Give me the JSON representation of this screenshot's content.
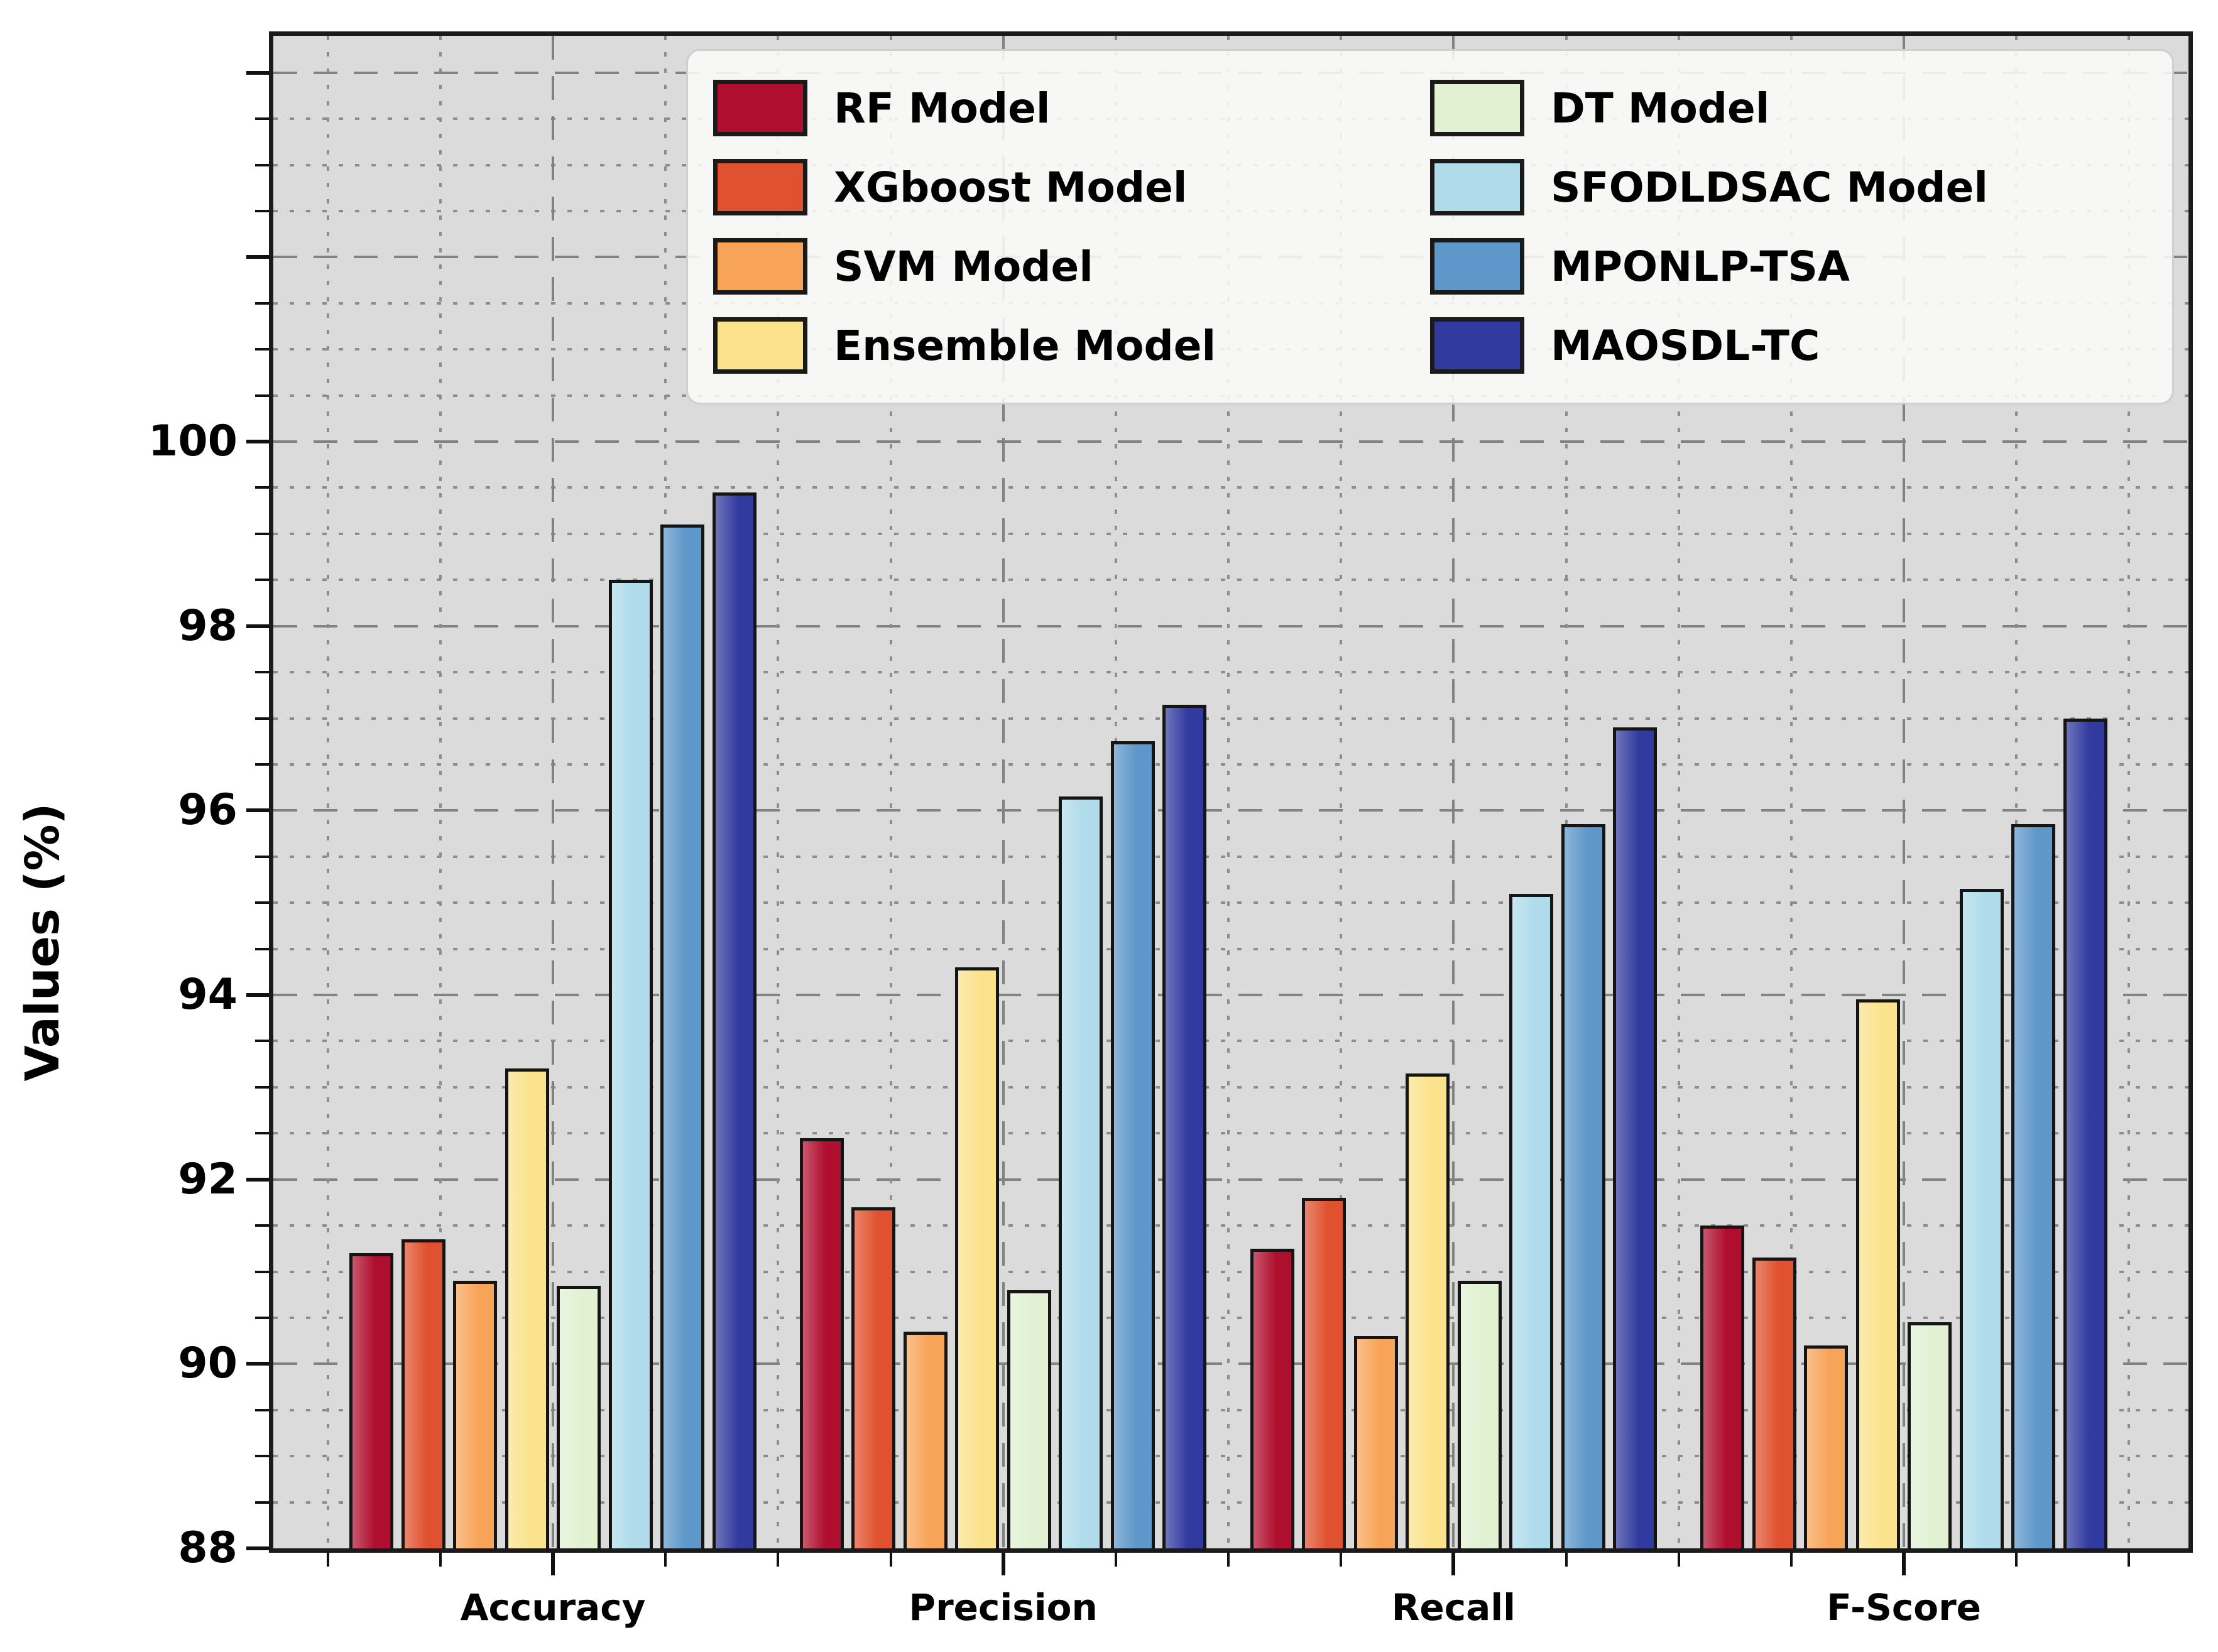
{
  "figure": {
    "background_color": "#ffffff",
    "plot_background_color": "#dbdbdb",
    "spine_color": "#1a1a1a",
    "major_grid_color": "#828282",
    "minor_grid_color": "#8d8d8d",
    "bar_edge_color": "#151515"
  },
  "chart_data": {
    "type": "bar",
    "title": "",
    "xlabel": "",
    "ylabel": "Values (%)",
    "ylim": [
      88,
      104.4
    ],
    "yticks": [
      88,
      90,
      92,
      94,
      96,
      98,
      100
    ],
    "minor_tick_step": 0.5,
    "grid": "major dashed + minor dotted, horizontal and vertical",
    "legend_position": "upper center, 2 columns, column-major order",
    "categories": [
      "Accuracy",
      "Precision",
      "Recall",
      "F-Score"
    ],
    "series": [
      {
        "name": "RF Model",
        "color": "#B00E2E",
        "values": [
          91.2,
          92.45,
          91.25,
          91.5
        ]
      },
      {
        "name": "XGboost Model",
        "color": "#E0512F",
        "values": [
          91.35,
          91.7,
          91.8,
          91.15
        ]
      },
      {
        "name": "SVM Model",
        "color": "#F8A458",
        "values": [
          90.9,
          90.35,
          90.3,
          90.2
        ]
      },
      {
        "name": "Ensemble Model",
        "color": "#FBE28C",
        "values": [
          93.2,
          94.3,
          93.15,
          93.95
        ]
      },
      {
        "name": "DT Model",
        "color": "#E1F1D2",
        "values": [
          90.85,
          90.8,
          90.9,
          90.45
        ]
      },
      {
        "name": "SFODLDSAC Model",
        "color": "#AFDBEA",
        "values": [
          98.5,
          96.15,
          95.1,
          95.15
        ]
      },
      {
        "name": "MPONLP-TSA",
        "color": "#5E97C9",
        "values": [
          99.1,
          96.75,
          95.85,
          95.85
        ]
      },
      {
        "name": "MAOSDL-TC",
        "color": "#313A9E",
        "values": [
          99.45,
          97.15,
          96.9,
          97.0
        ]
      }
    ]
  }
}
